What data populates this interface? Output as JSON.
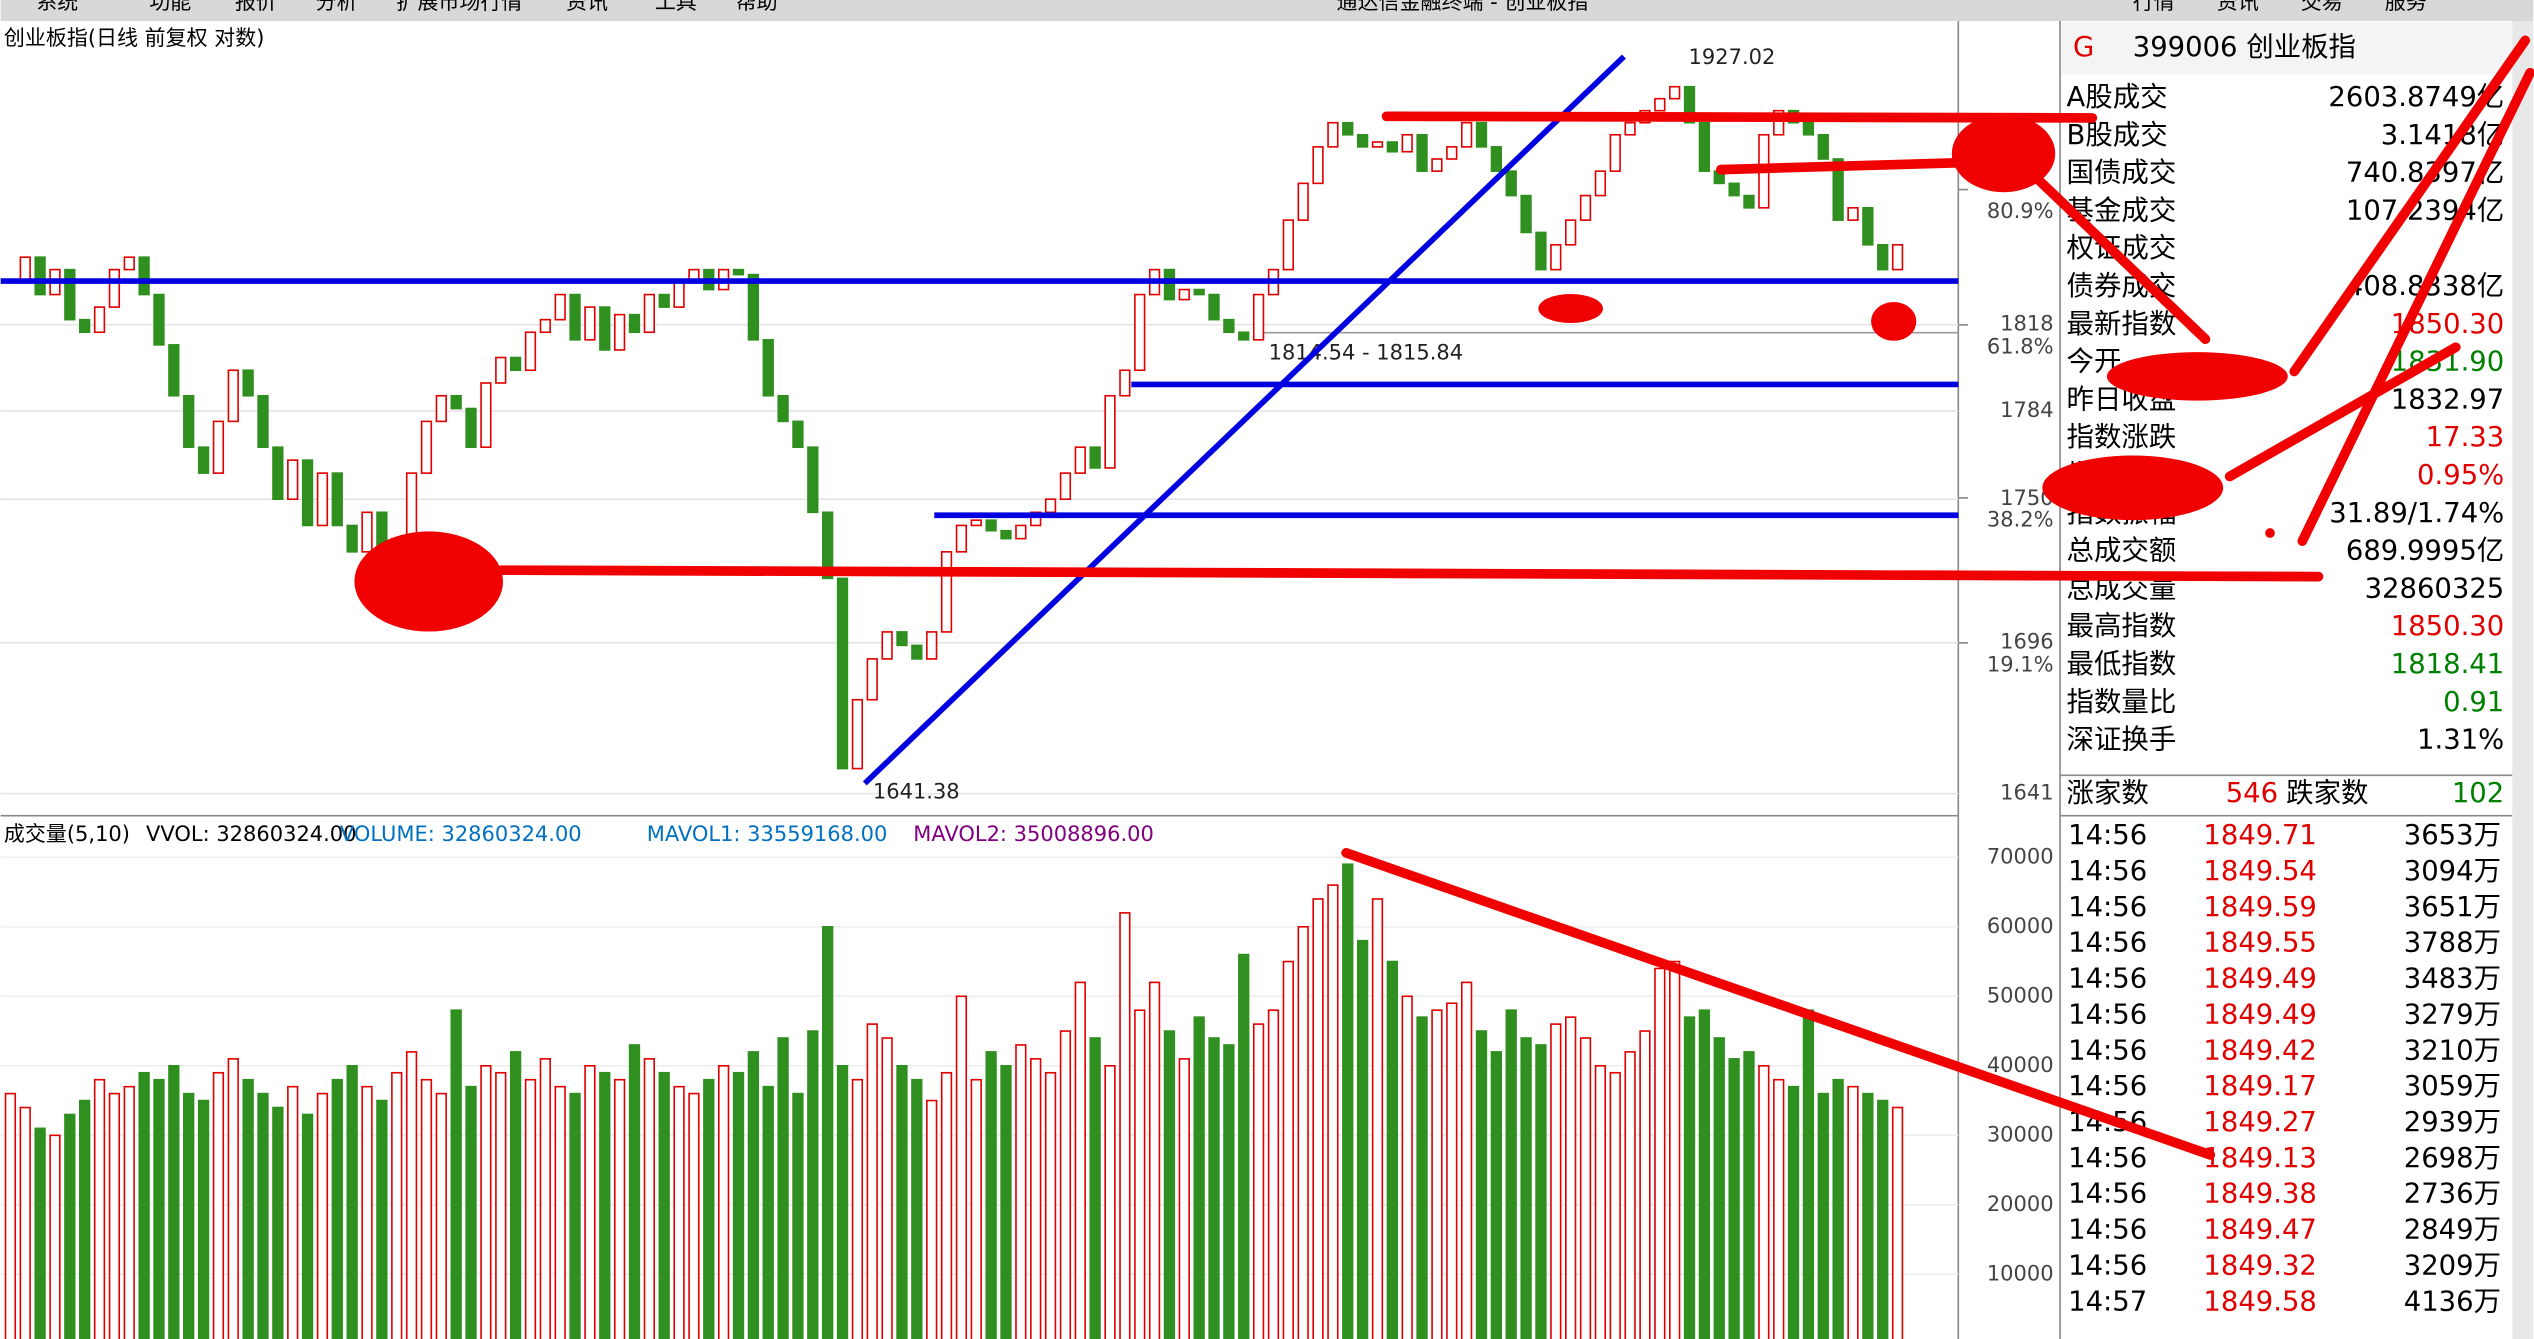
{
  "window": {
    "menu": [
      "系统",
      "功能",
      "报价",
      "分析",
      "扩展市场行情",
      "资讯",
      "工具",
      "帮助"
    ],
    "title": "通达信金融终端 - 创业板指",
    "buttons": [
      "行情",
      "资讯",
      "交易",
      "服务"
    ]
  },
  "chart_data": [
    {
      "type": "candlestick",
      "title": "创业板指(日线 前复权 对数)",
      "log": true,
      "up_color": "#e00000",
      "down_color": "#2f8f1f",
      "closes": [
        1835,
        1845,
        1830,
        1840,
        1820,
        1815,
        1825,
        1840,
        1845,
        1830,
        1810,
        1790,
        1770,
        1760,
        1780,
        1800,
        1790,
        1770,
        1750,
        1765,
        1740,
        1760,
        1740,
        1730,
        1745,
        1725,
        1735,
        1760,
        1780,
        1790,
        1785,
        1770,
        1795,
        1805,
        1800,
        1815,
        1820,
        1830,
        1812,
        1825,
        1808,
        1822,
        1815,
        1830,
        1825,
        1835,
        1840,
        1832,
        1840,
        1838,
        1812,
        1790,
        1780,
        1770,
        1745,
        1720,
        1650,
        1675,
        1690,
        1700,
        1695,
        1690,
        1700,
        1730,
        1740,
        1742,
        1738,
        1735,
        1740,
        1745,
        1750,
        1760,
        1770,
        1762,
        1790,
        1800,
        1830,
        1840,
        1828,
        1832,
        1830,
        1820,
        1815,
        1812,
        1830,
        1840,
        1860,
        1875,
        1890,
        1900,
        1895,
        1890,
        1892,
        1888,
        1895,
        1880,
        1885,
        1890,
        1900,
        1890,
        1880,
        1870,
        1855,
        1840,
        1850,
        1860,
        1870,
        1880,
        1895,
        1900,
        1905,
        1910,
        1915,
        1900,
        1880,
        1875,
        1870,
        1865,
        1895,
        1905,
        1900,
        1895,
        1885,
        1860,
        1865,
        1850,
        1840,
        1850
      ],
      "ylim": [
        1636,
        1942
      ],
      "yticks": [
        1641,
        1696,
        1750,
        1784,
        1818
      ],
      "fib_levels": [
        {
          "value": 1872.46,
          "label": "80.9%"
        },
        {
          "value": 1817.91,
          "label": "61.8%"
        },
        {
          "value": 1750.49,
          "label": "38.2%"
        },
        {
          "value": 1695.94,
          "label": "19.1%"
        }
      ],
      "high_label": {
        "value": 1927.02,
        "label": "1927.02"
      },
      "low_label": {
        "value": 1641.38,
        "label": "1641.38"
      },
      "range_label": "1814.54 - 1815.84"
    },
    {
      "type": "bar",
      "title": "成交量(5,10)",
      "legend": [
        "VVOL: 32860324.00",
        "VOLUME: 32860324.00",
        "MAVOL1: 33559168.00",
        "MAVOL2: 35008896.00"
      ],
      "values": [
        36000,
        34000,
        31000,
        30000,
        33000,
        35000,
        38000,
        36000,
        37000,
        39000,
        38000,
        40000,
        36000,
        35000,
        39000,
        41000,
        38000,
        36000,
        34000,
        37000,
        33000,
        36000,
        38000,
        40000,
        37000,
        35000,
        39000,
        42000,
        38000,
        36000,
        48000,
        37000,
        40000,
        39000,
        42000,
        38000,
        41000,
        37000,
        36000,
        40000,
        39000,
        38000,
        43000,
        41000,
        39000,
        37000,
        36000,
        38000,
        40000,
        39000,
        42000,
        37000,
        44000,
        36000,
        45000,
        60000,
        40000,
        38000,
        46000,
        44000,
        40000,
        38000,
        35000,
        39000,
        50000,
        38000,
        42000,
        40000,
        43000,
        41000,
        39000,
        45000,
        52000,
        44000,
        40000,
        62000,
        48000,
        52000,
        45000,
        41000,
        47000,
        44000,
        43000,
        56000,
        46000,
        48000,
        55000,
        60000,
        64000,
        66000,
        69000,
        58000,
        64000,
        55000,
        50000,
        47000,
        48000,
        49000,
        52000,
        45000,
        42000,
        48000,
        44000,
        43000,
        46000,
        47000,
        44000,
        40000,
        39000,
        42000,
        45000,
        54000,
        55000,
        47000,
        48000,
        44000,
        41000,
        42000,
        40000,
        38000,
        37000,
        48000,
        36000,
        38000,
        37000,
        36000,
        35000,
        34000
      ],
      "ylim": [
        0,
        72500
      ],
      "yticks": [
        10000,
        20000,
        30000,
        40000,
        50000,
        60000,
        70000
      ]
    }
  ],
  "quote_panel": {
    "marker": "G",
    "code": "399006 创业板指",
    "rows": [
      {
        "label": "A股成交",
        "value": "2603.8749亿",
        "color": "#000"
      },
      {
        "label": "B股成交",
        "value": "3.1418亿",
        "color": "#000"
      },
      {
        "label": "国债成交",
        "value": "740.8397亿",
        "color": "#000"
      },
      {
        "label": "基金成交",
        "value": "107.2394亿",
        "color": "#000"
      },
      {
        "label": "权证成交",
        "value": "",
        "color": "#000"
      },
      {
        "label": "债券成交",
        "value": "408.8338亿",
        "color": "#000"
      },
      {
        "label": "最新指数",
        "value": "1850.30",
        "color": "#e00000"
      },
      {
        "label": "今开",
        "value": "1831.90",
        "color": "#008000"
      },
      {
        "label": "昨日收盘",
        "value": "1832.97",
        "color": "#000"
      },
      {
        "label": "指数涨跌",
        "value": "17.33",
        "color": "#e00000"
      },
      {
        "label": "指数涨幅",
        "value": "0.95%",
        "color": "#e00000"
      },
      {
        "label": "指数振幅",
        "value": "31.89/1.74%",
        "color": "#000"
      },
      {
        "label": "总成交额",
        "value": "689.9995亿",
        "color": "#000"
      },
      {
        "label": "总成交量",
        "value": "32860325",
        "color": "#000"
      },
      {
        "label": "最高指数",
        "value": "1850.30",
        "color": "#e00000"
      },
      {
        "label": "最低指数",
        "value": "1818.41",
        "color": "#008000"
      },
      {
        "label": "指数量比",
        "value": "0.91",
        "color": "#008000"
      },
      {
        "label": "深证换手",
        "value": "1.31%",
        "color": "#000"
      }
    ],
    "breadth": {
      "up_label": "涨家数",
      "up": "546",
      "down_label": "跌家数",
      "down": "102"
    }
  },
  "ticks": [
    [
      "14:56",
      "1849.71",
      "3653万"
    ],
    [
      "14:56",
      "1849.54",
      "3094万"
    ],
    [
      "14:56",
      "1849.59",
      "3651万"
    ],
    [
      "14:56",
      "1849.55",
      "3788万"
    ],
    [
      "14:56",
      "1849.49",
      "3483万"
    ],
    [
      "14:56",
      "1849.49",
      "3279万"
    ],
    [
      "14:56",
      "1849.42",
      "3210万"
    ],
    [
      "14:56",
      "1849.17",
      "3059万"
    ],
    [
      "14:56",
      "1849.27",
      "2939万"
    ],
    [
      "14:56",
      "1849.13",
      "2698万"
    ],
    [
      "14:56",
      "1849.38",
      "2736万"
    ],
    [
      "14:56",
      "1849.47",
      "2849万"
    ],
    [
      "14:56",
      "1849.32",
      "3209万"
    ],
    [
      "14:57",
      "1849.58",
      "4136万"
    ]
  ]
}
